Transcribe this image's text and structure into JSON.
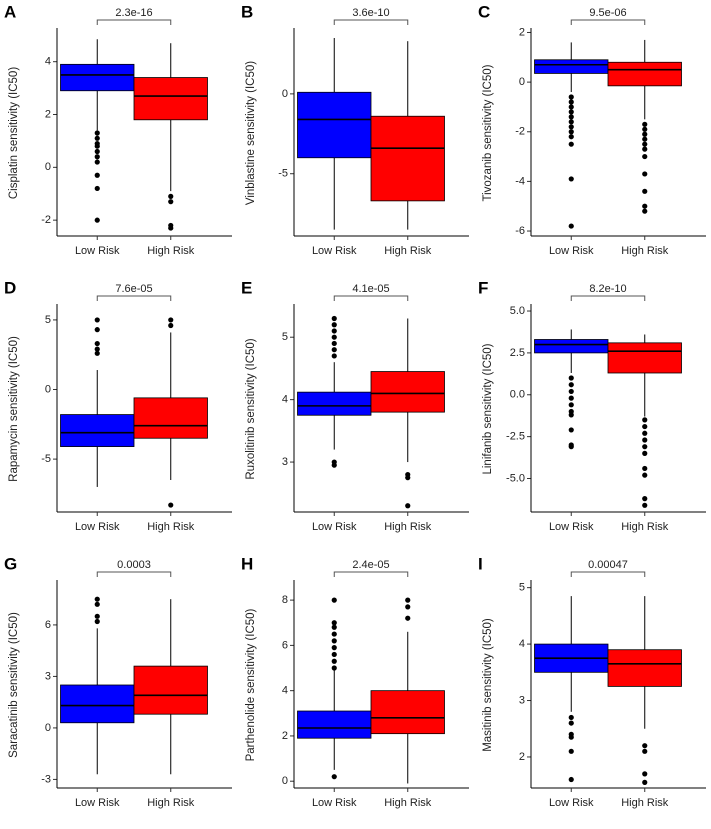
{
  "chart_data": [
    {
      "type": "box",
      "panel": "A",
      "ylabel": "Cisplatin sensitivity (IC50)",
      "p_value": "2.3e-16",
      "categories": [
        "Low Risk",
        "High Risk"
      ],
      "ylim": [
        -2.6,
        5.2
      ],
      "yticks": [
        -2,
        0,
        2,
        4
      ],
      "boxes": [
        {
          "color": "#0000ff",
          "min": 1.4,
          "q1": 2.9,
          "median": 3.5,
          "q3": 3.9,
          "max": 4.85,
          "outliers": [
            1.3,
            1.1,
            0.9,
            0.8,
            0.6,
            0.4,
            0.2,
            -0.3,
            -0.8,
            -2.0
          ]
        },
        {
          "color": "#ff0000",
          "min": -0.9,
          "q1": 1.8,
          "median": 2.7,
          "q3": 3.4,
          "max": 4.7,
          "outliers": [
            -1.1,
            -1.3,
            -2.2,
            -2.3
          ]
        }
      ]
    },
    {
      "type": "box",
      "panel": "B",
      "ylabel": "Vinblastine sensitivity (IC50)",
      "p_value": "3.6e-10",
      "categories": [
        "Low Risk",
        "High Risk"
      ],
      "ylim": [
        -8.9,
        4.0
      ],
      "yticks": [
        -5,
        0
      ],
      "boxes": [
        {
          "color": "#0000ff",
          "min": -8.5,
          "q1": -4.0,
          "median": -1.6,
          "q3": 0.1,
          "max": 3.5,
          "outliers": []
        },
        {
          "color": "#ff0000",
          "min": -8.5,
          "q1": -6.7,
          "median": -3.4,
          "q3": -1.4,
          "max": 3.3,
          "outliers": []
        }
      ]
    },
    {
      "type": "box",
      "panel": "C",
      "ylabel": "Tivozanib sensitivity (IC50)",
      "p_value": "9.5e-06",
      "categories": [
        "Low Risk",
        "High Risk"
      ],
      "ylim": [
        -6.2,
        2.1
      ],
      "yticks": [
        -6,
        -4,
        -2,
        0,
        2
      ],
      "boxes": [
        {
          "color": "#0000ff",
          "min": -0.4,
          "q1": 0.35,
          "median": 0.7,
          "q3": 0.9,
          "max": 1.6,
          "outliers": [
            -0.6,
            -0.8,
            -1.0,
            -1.2,
            -1.4,
            -1.6,
            -1.8,
            -2.0,
            -2.2,
            -2.5,
            -3.9,
            -5.8
          ]
        },
        {
          "color": "#ff0000",
          "min": -1.5,
          "q1": -0.15,
          "median": 0.5,
          "q3": 0.8,
          "max": 1.7,
          "outliers": [
            -1.7,
            -1.9,
            -2.1,
            -2.3,
            -2.5,
            -2.7,
            -3.0,
            -3.7,
            -4.4,
            -5.0,
            -5.2
          ]
        }
      ]
    },
    {
      "type": "box",
      "panel": "D",
      "ylabel": "Rapamycin sensitivity (IC50)",
      "p_value": "7.6e-05",
      "categories": [
        "Low Risk",
        "High Risk"
      ],
      "ylim": [
        -8.8,
        6.0
      ],
      "yticks": [
        -5,
        0,
        5
      ],
      "boxes": [
        {
          "color": "#0000ff",
          "min": -7.0,
          "q1": -4.1,
          "median": -3.1,
          "q3": -1.8,
          "max": 1.4,
          "outliers": [
            2.6,
            2.9,
            3.3,
            4.3,
            5.0
          ]
        },
        {
          "color": "#ff0000",
          "min": -6.5,
          "q1": -3.5,
          "median": -2.6,
          "q3": -0.6,
          "max": 4.1,
          "outliers": [
            4.6,
            5.0,
            -8.3
          ]
        }
      ]
    },
    {
      "type": "box",
      "panel": "E",
      "ylabel": "Ruxolitinib sensitivity (IC50)",
      "p_value": "4.1e-05",
      "categories": [
        "Low Risk",
        "High Risk"
      ],
      "ylim": [
        2.2,
        5.5
      ],
      "yticks": [
        3,
        4,
        5
      ],
      "boxes": [
        {
          "color": "#0000ff",
          "min": 3.2,
          "q1": 3.75,
          "median": 3.9,
          "q3": 4.12,
          "max": 4.6,
          "outliers": [
            4.7,
            4.8,
            4.9,
            5.0,
            5.1,
            5.2,
            5.3,
            3.0,
            2.95
          ]
        },
        {
          "color": "#ff0000",
          "min": 3.0,
          "q1": 3.8,
          "median": 4.1,
          "q3": 4.45,
          "max": 5.3,
          "outliers": [
            2.8,
            2.75,
            2.3
          ]
        }
      ]
    },
    {
      "type": "box",
      "panel": "F",
      "ylabel": "Linifanib sensitivity (IC50)",
      "p_value": "8.2e-10",
      "categories": [
        "Low Risk",
        "High Risk"
      ],
      "ylim": [
        -7.0,
        5.3
      ],
      "yticks": [
        {
          "value": -5,
          "label": "-5.0"
        },
        {
          "value": -2.5,
          "label": "-2.5"
        },
        {
          "value": 0,
          "label": "0.0"
        },
        {
          "value": 2.5,
          "label": "2.5"
        },
        {
          "value": 5,
          "label": "5.0"
        }
      ],
      "boxes": [
        {
          "color": "#0000ff",
          "min": 1.3,
          "q1": 2.5,
          "median": 3.0,
          "q3": 3.3,
          "max": 3.9,
          "outliers": [
            1.0,
            0.6,
            0.2,
            -0.2,
            -0.6,
            -1.0,
            -1.2,
            -2.1,
            -3.0,
            -3.1
          ]
        },
        {
          "color": "#ff0000",
          "min": -1.3,
          "q1": 1.3,
          "median": 2.6,
          "q3": 3.1,
          "max": 3.6,
          "outliers": [
            -1.5,
            -1.9,
            -2.3,
            -2.7,
            -3.1,
            -3.5,
            -4.4,
            -4.8,
            -6.2,
            -6.6
          ]
        }
      ]
    },
    {
      "type": "box",
      "panel": "G",
      "ylabel": "Saracatinib sensitivity (IC50)",
      "p_value": "0.0003",
      "categories": [
        "Low Risk",
        "High Risk"
      ],
      "ylim": [
        -3.5,
        8.5
      ],
      "yticks": [
        -3,
        0,
        3,
        6
      ],
      "boxes": [
        {
          "color": "#0000ff",
          "min": -2.7,
          "q1": 0.3,
          "median": 1.3,
          "q3": 2.5,
          "max": 5.8,
          "outliers": [
            6.2,
            6.5,
            7.2,
            7.5
          ]
        },
        {
          "color": "#ff0000",
          "min": -2.7,
          "q1": 0.8,
          "median": 1.9,
          "q3": 3.6,
          "max": 7.5,
          "outliers": []
        }
      ]
    },
    {
      "type": "box",
      "panel": "H",
      "ylabel": "Parthenolide sensitivity (IC50)",
      "p_value": "2.4e-05",
      "categories": [
        "Low Risk",
        "High Risk"
      ],
      "ylim": [
        -0.3,
        8.8
      ],
      "yticks": [
        0,
        2,
        4,
        6,
        8
      ],
      "boxes": [
        {
          "color": "#0000ff",
          "min": 0.5,
          "q1": 1.9,
          "median": 2.35,
          "q3": 3.1,
          "max": 4.9,
          "outliers": [
            5.0,
            5.3,
            5.6,
            5.9,
            6.2,
            6.5,
            6.8,
            7.0,
            8.0,
            0.2
          ]
        },
        {
          "color": "#ff0000",
          "min": -0.1,
          "q1": 2.1,
          "median": 2.8,
          "q3": 4.0,
          "max": 6.6,
          "outliers": [
            7.2,
            7.7,
            8.0
          ]
        }
      ]
    },
    {
      "type": "box",
      "panel": "I",
      "ylabel": "Masitinib sensitivity (IC50)",
      "p_value": "0.00047",
      "categories": [
        "Low Risk",
        "High Risk"
      ],
      "ylim": [
        1.45,
        5.1
      ],
      "yticks": [
        2,
        3,
        4,
        5
      ],
      "boxes": [
        {
          "color": "#0000ff",
          "min": 2.8,
          "q1": 3.5,
          "median": 3.75,
          "q3": 4.0,
          "max": 4.85,
          "outliers": [
            2.7,
            2.6,
            2.4,
            2.35,
            2.1,
            1.6
          ]
        },
        {
          "color": "#ff0000",
          "min": 2.5,
          "q1": 3.25,
          "median": 3.65,
          "q3": 3.9,
          "max": 4.85,
          "outliers": [
            2.2,
            2.1,
            1.7,
            1.55
          ]
        }
      ]
    }
  ]
}
